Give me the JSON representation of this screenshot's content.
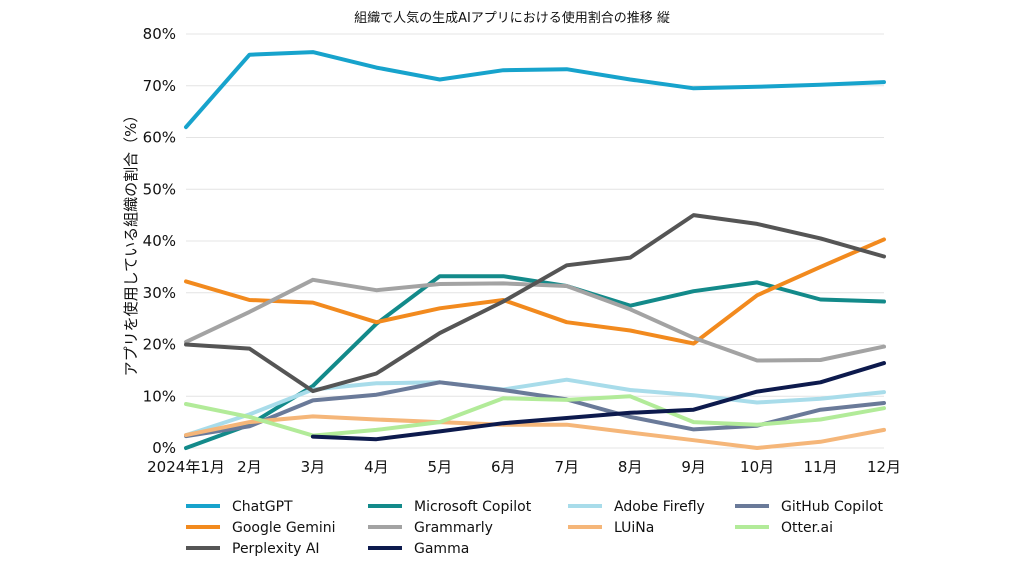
{
  "chart_data": {
    "type": "line",
    "title": "組織で人気の生成AIアプリにおける使用割合の推移 縦",
    "xlabel": "",
    "ylabel": "アプリを使用している組織の割合（%）",
    "categories": [
      "2024年1月",
      "2月",
      "3月",
      "4月",
      "5月",
      "6月",
      "7月",
      "8月",
      "9月",
      "10月",
      "11月",
      "12月"
    ],
    "ylim": [
      0,
      80
    ],
    "yticks": [
      "0%",
      "10%",
      "20%",
      "30%",
      "40%",
      "50%",
      "60%",
      "70%",
      "80%"
    ],
    "grid": true,
    "legend_position": "bottom",
    "series": [
      {
        "name": "ChatGPT",
        "color": "#17a3cc",
        "values": [
          62,
          76,
          76.5,
          73.5,
          71.2,
          73,
          73.2,
          71.2,
          69.5,
          69.8,
          70.2,
          70.7
        ]
      },
      {
        "name": "Microsoft Copilot",
        "color": "#138a8a",
        "values": [
          0,
          4.5,
          12,
          24,
          33.2,
          33.2,
          31.3,
          27.5,
          30.3,
          32,
          28.7,
          28.3
        ]
      },
      {
        "name": "Adobe Firefly",
        "color": "#a8dcea",
        "values": [
          2.5,
          6.5,
          11.3,
          12.5,
          12.7,
          11.3,
          13.2,
          11.2,
          10.2,
          8.8,
          9.5,
          10.8
        ]
      },
      {
        "name": "GitHub Copilot",
        "color": "#6a7a99",
        "values": [
          2.3,
          4.2,
          9.2,
          10.3,
          12.7,
          11.2,
          9.4,
          6,
          3.6,
          4.3,
          7.4,
          8.7
        ]
      },
      {
        "name": "Google Gemini",
        "color": "#f28a1e",
        "values": [
          32.2,
          28.6,
          28.1,
          24.3,
          27,
          28.6,
          24.3,
          22.7,
          20.2,
          29.5,
          35,
          40.3
        ]
      },
      {
        "name": "Grammarly",
        "color": "#a3a3a3",
        "values": [
          20.5,
          26.3,
          32.5,
          30.5,
          31.7,
          31.8,
          31.3,
          26.8,
          21.3,
          16.9,
          17,
          19.6
        ]
      },
      {
        "name": "LUiNa",
        "color": "#f5b679",
        "values": [
          2.5,
          5,
          6.1,
          5.5,
          5,
          4.5,
          4.5,
          3,
          1.5,
          0,
          1.2,
          3.5
        ]
      },
      {
        "name": "Otter.ai",
        "color": "#b2eb99",
        "values": [
          8.5,
          6,
          2.4,
          3.5,
          5,
          9.6,
          9.3,
          10,
          5,
          4.5,
          5.5,
          7.7
        ]
      },
      {
        "name": "Perplexity AI",
        "color": "#555555",
        "values": [
          20,
          19.2,
          11,
          14.4,
          22.2,
          28.3,
          35.3,
          36.8,
          45,
          43.3,
          40.5,
          37
        ]
      },
      {
        "name": "Gamma",
        "color": "#0d1a4d",
        "values": [
          null,
          null,
          2.2,
          1.7,
          3.2,
          4.8,
          5.8,
          6.8,
          7.4,
          10.9,
          12.7,
          16.4
        ]
      }
    ],
    "legend_order": [
      "ChatGPT",
      "Microsoft Copilot",
      "Adobe Firefly",
      "GitHub Copilot",
      "Google Gemini",
      "Grammarly",
      "LUiNa",
      "Otter.ai",
      "Perplexity AI",
      "Gamma"
    ]
  }
}
